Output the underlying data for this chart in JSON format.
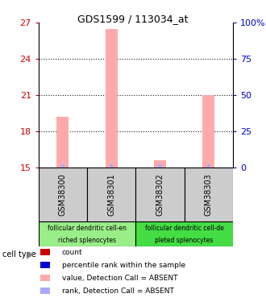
{
  "title": "GDS1599 / 113034_at",
  "samples": [
    "GSM38300",
    "GSM38301",
    "GSM38302",
    "GSM38303"
  ],
  "ylim": [
    15,
    27
  ],
  "yticks_left": [
    15,
    18,
    21,
    24,
    27
  ],
  "yticks_right": [
    0,
    25,
    50,
    75,
    100
  ],
  "yticklabels_right": [
    "0",
    "25",
    "50",
    "75",
    "100%"
  ],
  "left_axis_color": "#cc0000",
  "right_axis_color": "#0000cc",
  "pink_bar_values": [
    19.2,
    26.5,
    15.6,
    21.0
  ],
  "blue_bar_values": [
    15.3,
    15.3,
    15.3,
    15.3
  ],
  "pink_bar_color": "#ffaaaa",
  "blue_bar_color": "#aaaaff",
  "bar_bottom": 15,
  "cell_type_groups": [
    {
      "label": "follicular dendritic cell-en\nriched splenocytes",
      "start": 0,
      "end": 2,
      "color": "#99ee88"
    },
    {
      "label": "follicular dendritic cell-de\npleted splenocytes",
      "start": 2,
      "end": 4,
      "color": "#44dd44"
    }
  ],
  "cell_type_label": "cell type",
  "legend_items": [
    {
      "color": "#cc0000",
      "label": "count"
    },
    {
      "color": "#0000cc",
      "label": "percentile rank within the sample"
    },
    {
      "color": "#ffaaaa",
      "label": "value, Detection Call = ABSENT"
    },
    {
      "color": "#aaaaff",
      "label": "rank, Detection Call = ABSENT"
    }
  ],
  "sample_box_color": "#cccccc",
  "background_color": "#ffffff",
  "grid_dotted_at": [
    18,
    21,
    24
  ]
}
